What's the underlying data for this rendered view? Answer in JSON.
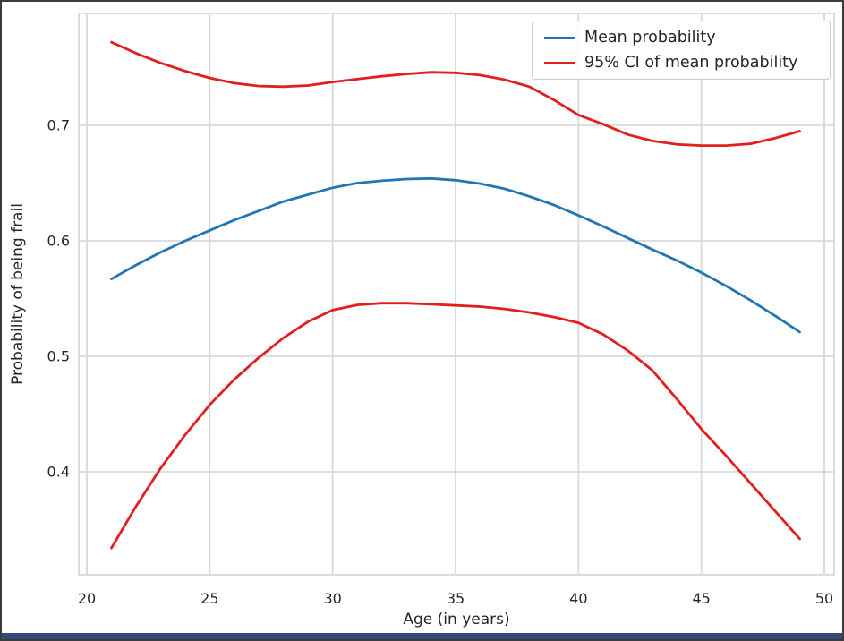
{
  "figure": {
    "border_color": "#3c3c3c",
    "background_color": "#ffffff",
    "grid_color": "#d9d9d9",
    "text_color": "#262626",
    "bottom_bar_color": "#324b78"
  },
  "legend": {
    "entries": [
      {
        "label": "Mean probability",
        "color": "#2077b4"
      },
      {
        "label": "95% CI of mean probability",
        "color": "#e21e1e"
      }
    ]
  },
  "chart_data": {
    "type": "line",
    "title": "",
    "xlabel": "Age (in years)",
    "ylabel": "Probability of being frail",
    "x_ticks": [
      20,
      25,
      30,
      35,
      40,
      45,
      50
    ],
    "y_ticks": [
      0.4,
      0.5,
      0.6,
      0.7
    ],
    "xlim": [
      19.6,
      50.4
    ],
    "ylim": [
      0.311,
      0.797
    ],
    "grid": true,
    "legend_position": "upper right",
    "x": [
      21,
      22,
      23,
      24,
      25,
      26,
      27,
      28,
      29,
      30,
      31,
      32,
      33,
      34,
      35,
      36,
      37,
      38,
      39,
      40,
      41,
      42,
      43,
      44,
      45,
      46,
      47,
      48,
      49
    ],
    "series": [
      {
        "name": "Mean probability",
        "color": "#2077b4",
        "values": [
          0.567,
          0.579,
          0.59,
          0.6,
          0.609,
          0.618,
          0.626,
          0.634,
          0.64,
          0.646,
          0.65,
          0.652,
          0.6535,
          0.654,
          0.6525,
          0.6495,
          0.645,
          0.6385,
          0.631,
          0.622,
          0.6125,
          0.6025,
          0.5925,
          0.583,
          0.5725,
          0.561,
          0.5485,
          0.535,
          0.521
        ]
      },
      {
        "name": "95% CI of mean probability (upper bound)",
        "color": "#e21e1e",
        "values": [
          0.772,
          0.7625,
          0.754,
          0.747,
          0.741,
          0.7365,
          0.734,
          0.7335,
          0.7345,
          0.7375,
          0.74,
          0.7425,
          0.7445,
          0.746,
          0.7455,
          0.7435,
          0.7395,
          0.7335,
          0.722,
          0.709,
          0.701,
          0.692,
          0.6865,
          0.6835,
          0.6825,
          0.6825,
          0.684,
          0.689,
          0.695
        ]
      },
      {
        "name": "95% CI of mean probability (lower bound)",
        "color": "#e21e1e",
        "values": [
          0.334,
          0.37,
          0.403,
          0.432,
          0.458,
          0.48,
          0.499,
          0.516,
          0.53,
          0.54,
          0.5445,
          0.546,
          0.546,
          0.545,
          0.544,
          0.543,
          0.541,
          0.538,
          0.534,
          0.529,
          0.519,
          0.505,
          0.488,
          0.463,
          0.437,
          0.414,
          0.39,
          0.366,
          0.342
        ]
      }
    ]
  }
}
